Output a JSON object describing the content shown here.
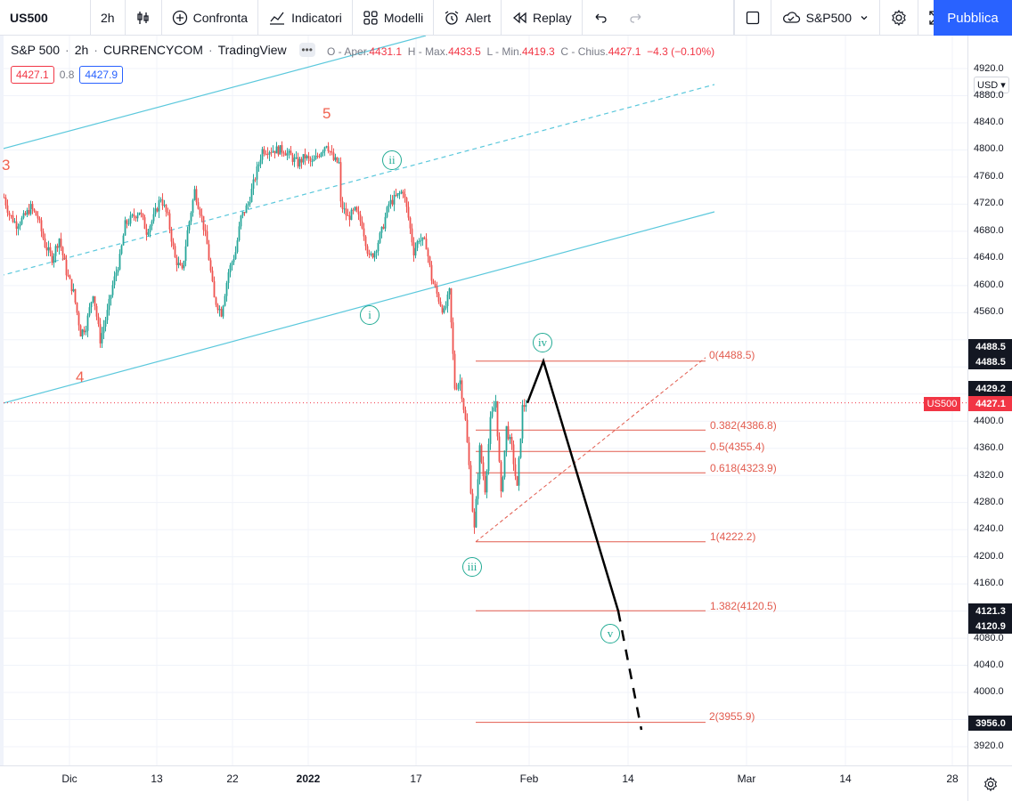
{
  "toolbar": {
    "symbol": "US500",
    "interval": "2h",
    "compare": "Confronta",
    "indicators": "Indicatori",
    "templates": "Modelli",
    "alert": "Alert",
    "replay": "Replay",
    "symbol_select": "S&P500",
    "publish": "Pubblica"
  },
  "legend": {
    "title": "S&P 500",
    "interval": "2h",
    "source": "CURRENCYCOM",
    "platform": "TradingView",
    "open_label": "O - Aper.",
    "open": "4431.1",
    "high_label": "H - Max.",
    "high": "4433.5",
    "low_label": "L - Min.",
    "low": "4419.3",
    "close_label": "C - Chius.",
    "close": "4427.1",
    "change": "−4.3 (−0.10%)",
    "bid": "4427.1",
    "spread": "0.8",
    "ask": "4427.9"
  },
  "price_axis": {
    "currency": "USD",
    "ticks": [
      "4920.0",
      "4880.0",
      "4840.0",
      "4800.0",
      "4760.0",
      "4720.0",
      "4680.0",
      "4640.0",
      "4600.0",
      "4560.0",
      "4400.0",
      "4360.0",
      "4320.0",
      "4280.0",
      "4240.0",
      "4200.0",
      "4160.0",
      "4080.0",
      "4040.0",
      "4000.0",
      "3920.0"
    ],
    "tags": {
      "t1": "4488.5",
      "t2": "4488.5",
      "t3": "4429.2",
      "t4": "4427.1",
      "t5": "4121.3",
      "t6": "4120.9",
      "t7": "3956.0"
    },
    "symbol_tag": "US500"
  },
  "time_axis": {
    "labels": [
      "Dic",
      "13",
      "22",
      "2022",
      "17",
      "Feb",
      "14",
      "Mar",
      "14",
      "28"
    ]
  },
  "waves": {
    "red": [
      "3",
      "5",
      "4"
    ],
    "green": [
      "ii",
      "i",
      "iii",
      "iv",
      "v"
    ]
  },
  "fib_levels": [
    {
      "label": "0(4488.5)",
      "value": 4488.5
    },
    {
      "label": "0.382(4386.8)",
      "value": 4386.8
    },
    {
      "label": "0.5(4355.4)",
      "value": 4355.4
    },
    {
      "label": "0.618(4323.9)",
      "value": 4323.9
    },
    {
      "label": "1(4222.2)",
      "value": 4222.2
    },
    {
      "label": "1.382(4120.5)",
      "value": 4120.5
    },
    {
      "label": "2(3955.9)",
      "value": 3955.9
    }
  ],
  "colors": {
    "up": "#26a69a",
    "down": "#ef5350",
    "channel": "#5bc8dc",
    "fib": "#e25b4e",
    "wave_green": "#22ab94",
    "wave_red": "#f0614f",
    "accent": "#2962ff"
  }
}
